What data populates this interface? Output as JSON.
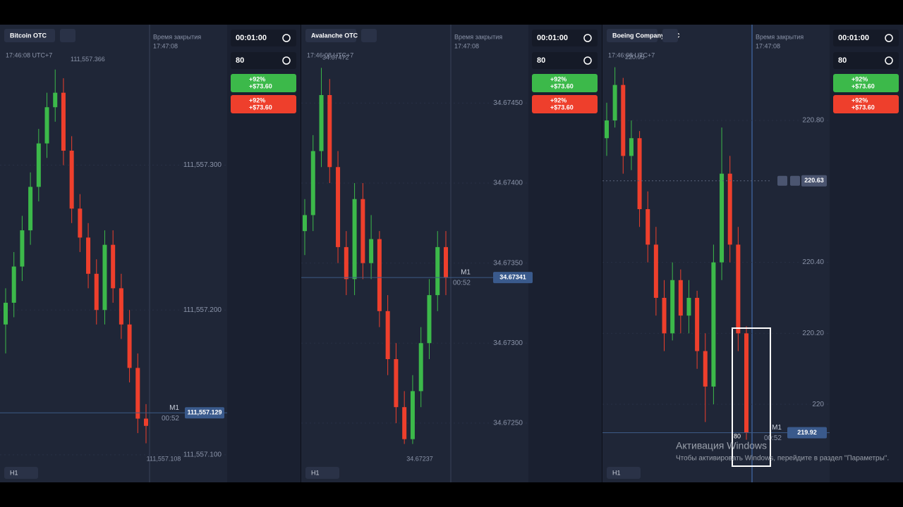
{
  "panels": [
    {
      "asset": "Bitcoin OTC",
      "time": "17:46:08 UTC+7",
      "close_label": "Время закрытия",
      "close_time": "17:47:08",
      "high_label": "111,557.366",
      "low_label": "111,557.108",
      "ylim": [
        111557.081,
        111557.397
      ],
      "price_ticks": [
        {
          "value": 111557.3,
          "label": "111,557.300"
        },
        {
          "value": 111557.2,
          "label": "111,557.200"
        },
        {
          "value": 111557.1,
          "label": "111,557.100"
        }
      ],
      "current_price": {
        "value": 111557.129,
        "label": "111,557.129"
      },
      "timer": "M1",
      "countdown": "00:52",
      "timeframe": "H1",
      "duration": "00:01:00",
      "amount": "80",
      "up": {
        "percent": "+92%",
        "payout": "+$73.60"
      },
      "down": {
        "percent": "+92%",
        "payout": "+$73.60"
      },
      "candles": [
        [
          111557.19,
          111557.215,
          111557.17,
          111557.205
        ],
        [
          111557.205,
          111557.24,
          111557.195,
          111557.23
        ],
        [
          111557.23,
          111557.265,
          111557.22,
          111557.255
        ],
        [
          111557.255,
          111557.295,
          111557.245,
          111557.285
        ],
        [
          111557.285,
          111557.325,
          111557.275,
          111557.315
        ],
        [
          111557.315,
          111557.35,
          111557.305,
          111557.34
        ],
        [
          111557.34,
          111557.366,
          111557.33,
          111557.35
        ],
        [
          111557.35,
          111557.36,
          111557.3,
          111557.31
        ],
        [
          111557.31,
          111557.32,
          111557.26,
          111557.27
        ],
        [
          111557.27,
          111557.28,
          111557.24,
          111557.25
        ],
        [
          111557.25,
          111557.26,
          111557.215,
          111557.225
        ],
        [
          111557.225,
          111557.235,
          111557.19,
          111557.2
        ],
        [
          111557.2,
          111557.255,
          111557.19,
          111557.245
        ],
        [
          111557.245,
          111557.255,
          111557.205,
          111557.215
        ],
        [
          111557.215,
          111557.225,
          111557.18,
          111557.19
        ],
        [
          111557.19,
          111557.2,
          111557.15,
          111557.16
        ],
        [
          111557.16,
          111557.17,
          111557.115,
          111557.125
        ],
        [
          111557.125,
          111557.135,
          111557.108,
          111557.12
        ]
      ]
    },
    {
      "asset": "Avalanche OTC",
      "time": "17:46:08 UTC+7",
      "close_label": "Время закрытия",
      "close_time": "17:47:08",
      "high_label": "34.67472",
      "low_label": "34.67237",
      "ylim": [
        34.67213,
        34.67499
      ],
      "price_ticks": [
        {
          "value": 34.6745,
          "label": "34.67450"
        },
        {
          "value": 34.674,
          "label": "34.67400"
        },
        {
          "value": 34.6735,
          "label": "34.67350"
        },
        {
          "value": 34.673,
          "label": "34.67300"
        },
        {
          "value": 34.6725,
          "label": "34.67250"
        }
      ],
      "current_price": {
        "value": 34.67341,
        "label": "34.67341"
      },
      "timer": "M1",
      "countdown": "00:52",
      "timeframe": "H1",
      "duration": "00:01:00",
      "amount": "80",
      "up": {
        "percent": "+92%",
        "payout": "+$73.60"
      },
      "down": {
        "percent": "+92%",
        "payout": "+$73.60"
      },
      "candles": [
        [
          34.6737,
          34.6739,
          34.67355,
          34.6738
        ],
        [
          34.6738,
          34.6743,
          34.6737,
          34.6742
        ],
        [
          34.6742,
          34.67472,
          34.6741,
          34.67455
        ],
        [
          34.67455,
          34.67465,
          34.674,
          34.6741
        ],
        [
          34.6741,
          34.6742,
          34.6735,
          34.6736
        ],
        [
          34.6736,
          34.6737,
          34.6733,
          34.6734
        ],
        [
          34.6734,
          34.674,
          34.6733,
          34.6739
        ],
        [
          34.6739,
          34.674,
          34.6734,
          34.6735
        ],
        [
          34.6735,
          34.6738,
          34.6734,
          34.67365
        ],
        [
          34.67365,
          34.6737,
          34.6731,
          34.6732
        ],
        [
          34.6732,
          34.6733,
          34.6728,
          34.6729
        ],
        [
          34.6729,
          34.673,
          34.6725,
          34.6726
        ],
        [
          34.6726,
          34.6727,
          34.67237,
          34.6724
        ],
        [
          34.6724,
          34.6728,
          34.67237,
          34.6727
        ],
        [
          34.6727,
          34.6731,
          34.6726,
          34.673
        ],
        [
          34.673,
          34.6734,
          34.6729,
          34.6733
        ],
        [
          34.6733,
          34.6737,
          34.6732,
          34.6736
        ],
        [
          34.6736,
          34.6737,
          34.6733,
          34.67341
        ]
      ]
    },
    {
      "asset": "Boeing Company OTC",
      "time": "17:46:08 UTC+7",
      "close_label": "Время закрытия",
      "close_time": "17:47:08",
      "high_label": "220.95",
      "ylim": [
        219.78,
        221.07
      ],
      "price_ticks": [
        {
          "value": 220.8,
          "label": "220.80"
        },
        {
          "value": 220.4,
          "label": "220.40"
        },
        {
          "value": 220.2,
          "label": "220.20"
        },
        220
      ],
      "alert_price": {
        "value": 220.63,
        "label": "220.63"
      },
      "current_price": {
        "value": 219.92,
        "label": "219.92"
      },
      "timer": "M1",
      "countdown": "00:52",
      "timeframe": "H1",
      "trade_marker": "80",
      "duration": "00:01:00",
      "amount": "80",
      "up": {
        "percent": "+92%",
        "payout": "+$73.60"
      },
      "down": {
        "percent": "+92%",
        "payout": "+$73.60"
      },
      "candles": [
        [
          220.75,
          220.85,
          220.7,
          220.8
        ],
        [
          220.8,
          220.95,
          220.78,
          220.9
        ],
        [
          220.9,
          220.92,
          220.65,
          220.7
        ],
        [
          220.7,
          220.8,
          220.66,
          220.75
        ],
        [
          220.75,
          220.77,
          220.5,
          220.55
        ],
        [
          220.55,
          220.6,
          220.4,
          220.45
        ],
        [
          220.45,
          220.5,
          220.25,
          220.3
        ],
        [
          220.3,
          220.35,
          220.15,
          220.2
        ],
        [
          220.2,
          220.4,
          220.18,
          220.35
        ],
        [
          220.35,
          220.38,
          220.2,
          220.25
        ],
        [
          220.25,
          220.35,
          220.2,
          220.3
        ],
        [
          220.3,
          220.32,
          220.1,
          220.15
        ],
        [
          220.15,
          220.2,
          219.95,
          220.05
        ],
        [
          220.05,
          220.45,
          220.0,
          220.4
        ],
        [
          220.4,
          220.78,
          220.35,
          220.65
        ],
        [
          220.65,
          220.7,
          220.4,
          220.45
        ],
        [
          220.45,
          220.5,
          220.15,
          220.2
        ],
        [
          220.2,
          220.22,
          219.9,
          219.92
        ]
      ]
    }
  ],
  "os_notice": {
    "title": "Активация Windows",
    "text": "Чтобы активировать Windows, перейдите в раздел \"Параметры\"."
  }
}
